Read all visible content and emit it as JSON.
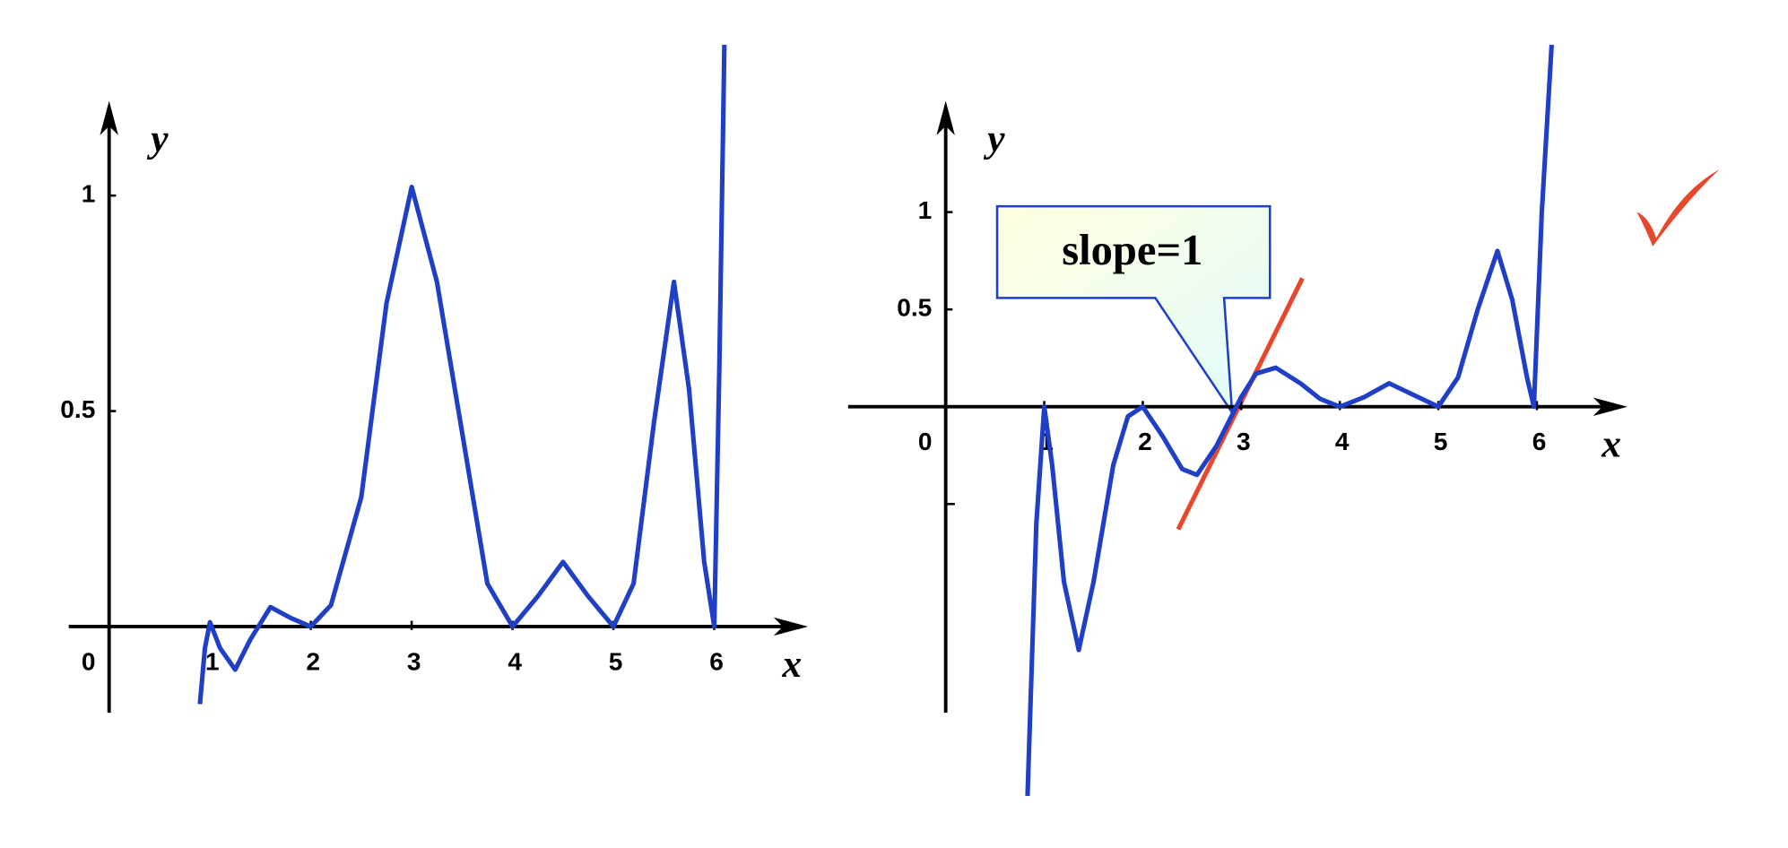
{
  "chart_data": [
    {
      "type": "line",
      "x_label": "x",
      "y_label": "y",
      "x": [
        0.9,
        0.95,
        1,
        1.1,
        1.25,
        1.4,
        1.6,
        1.8,
        2,
        2.2,
        2.5,
        2.75,
        3,
        3.25,
        3.5,
        3.75,
        4,
        4.25,
        4.5,
        4.75,
        5,
        5.2,
        5.4,
        5.6,
        5.75,
        5.9,
        6,
        6.05,
        6.1
      ],
      "series": [
        {
          "color": "#1f3fc7",
          "values": [
            -0.18,
            -0.05,
            0.01,
            -0.05,
            -0.1,
            -0.03,
            0.045,
            0.02,
            0,
            0.05,
            0.3,
            0.75,
            1.02,
            0.8,
            0.45,
            0.1,
            0,
            0.07,
            0.15,
            0.07,
            0,
            0.1,
            0.47,
            0.8,
            0.55,
            0.15,
            0,
            0.6,
            1.35
          ]
        }
      ],
      "xlim": [
        -0.4,
        6.93
      ],
      "ylim": [
        -0.2,
        1.35
      ],
      "xticks": [
        0,
        1,
        2,
        3,
        4,
        5,
        6
      ],
      "yticks": [
        0.5,
        1
      ]
    },
    {
      "type": "line",
      "x_label": "x",
      "y_label": "y",
      "x": [
        0.83,
        0.92,
        1,
        1.08,
        1.2,
        1.35,
        1.5,
        1.7,
        1.85,
        2,
        2.2,
        2.4,
        2.55,
        2.75,
        3,
        3.15,
        3.35,
        3.6,
        3.8,
        4,
        4.25,
        4.5,
        4.75,
        5,
        5.2,
        5.4,
        5.6,
        5.75,
        5.9,
        5.97,
        6.05,
        6.15
      ],
      "series": [
        {
          "color": "#1f3fc7",
          "values": [
            -2.0,
            -0.6,
            0,
            -0.3,
            -0.9,
            -1.25,
            -0.9,
            -0.3,
            -0.05,
            0,
            -0.15,
            -0.32,
            -0.35,
            -0.2,
            0.05,
            0.17,
            0.2,
            0.12,
            0.04,
            0,
            0.05,
            0.12,
            0.06,
            0,
            0.15,
            0.5,
            0.8,
            0.55,
            0.15,
            0,
            1.0,
            1.86
          ]
        }
      ],
      "tangent_line": {
        "x": [
          2.36,
          3.62
        ],
        "y": [
          -0.63,
          0.66
        ],
        "color": "#e8472c"
      },
      "annotation": "slope=1",
      "xlim": [
        -0.99,
        6.92
      ],
      "ylim": [
        -2.02,
        1.86
      ],
      "xticks": [
        0,
        1,
        2,
        3,
        4,
        5,
        6
      ],
      "yticks": [
        0.5,
        1
      ],
      "minor_yticks": [
        -0.5
      ]
    }
  ]
}
